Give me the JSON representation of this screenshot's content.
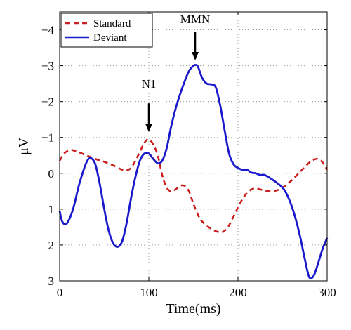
{
  "chart_data": {
    "type": "line",
    "xlabel": "Time(ms)",
    "ylabel": "μV",
    "xlim": [
      0,
      300
    ],
    "ylim": [
      -4.5,
      3
    ],
    "y_inverted": true,
    "x_ticks": [
      0,
      100,
      200,
      300
    ],
    "y_ticks": [
      -4,
      -3,
      -2,
      -1,
      0,
      1,
      2,
      3
    ],
    "y_tick_labels": [
      "−4",
      "−3",
      "−2",
      "−1",
      "0",
      "1",
      "2",
      "3"
    ],
    "grid": "dotted",
    "legend_position": "top-left",
    "series": [
      {
        "name": "Standard",
        "color": "#cc1f1f",
        "style": "dashed",
        "x": [
          0,
          5,
          12,
          20,
          30,
          40,
          50,
          60,
          70,
          75,
          80,
          85,
          90,
          95,
          100,
          105,
          110,
          115,
          120,
          125,
          130,
          135,
          140,
          145,
          150,
          155,
          160,
          170,
          180,
          185,
          190,
          200,
          205,
          210,
          215,
          220,
          225,
          230,
          240,
          250,
          260,
          270,
          280,
          285,
          290,
          295,
          300
        ],
        "y": [
          -0.35,
          -0.55,
          -0.65,
          -0.6,
          -0.5,
          -0.4,
          -0.32,
          -0.22,
          -0.1,
          -0.08,
          -0.15,
          -0.35,
          -0.6,
          -0.85,
          -0.95,
          -0.8,
          -0.5,
          0.05,
          0.4,
          0.5,
          0.45,
          0.35,
          0.35,
          0.5,
          0.85,
          1.15,
          1.35,
          1.55,
          1.65,
          1.6,
          1.45,
          0.95,
          0.72,
          0.55,
          0.45,
          0.42,
          0.45,
          0.48,
          0.5,
          0.4,
          0.2,
          -0.05,
          -0.3,
          -0.38,
          -0.4,
          -0.3,
          -0.1
        ]
      },
      {
        "name": "Deviant",
        "color": "#1a1acc",
        "style": "solid",
        "x": [
          0,
          3,
          8,
          15,
          22,
          30,
          35,
          40,
          45,
          50,
          55,
          60,
          65,
          70,
          75,
          80,
          85,
          90,
          95,
          100,
          105,
          110,
          115,
          120,
          125,
          130,
          135,
          140,
          145,
          150,
          152,
          155,
          160,
          165,
          170,
          175,
          180,
          185,
          190,
          195,
          200,
          205,
          210,
          215,
          220,
          225,
          230,
          240,
          250,
          255,
          260,
          265,
          270,
          275,
          280,
          285,
          290,
          295,
          300
        ],
        "y": [
          1.05,
          1.35,
          1.4,
          1.0,
          0.3,
          -0.3,
          -0.42,
          -0.25,
          0.3,
          1.0,
          1.6,
          1.95,
          2.05,
          1.9,
          1.4,
          0.7,
          0.1,
          -0.35,
          -0.55,
          -0.55,
          -0.4,
          -0.28,
          -0.35,
          -0.7,
          -1.3,
          -1.8,
          -2.2,
          -2.55,
          -2.85,
          -3.0,
          -3.02,
          -2.98,
          -2.65,
          -2.5,
          -2.48,
          -2.4,
          -1.9,
          -1.2,
          -0.55,
          -0.25,
          -0.15,
          -0.1,
          -0.1,
          -0.02,
          0.0,
          0.05,
          0.05,
          0.2,
          0.4,
          0.6,
          0.9,
          1.3,
          1.8,
          2.4,
          2.9,
          2.85,
          2.5,
          2.1,
          1.8
        ]
      }
    ],
    "annotations": [
      {
        "text": "N1",
        "x": 100,
        "label_y": -2.5,
        "arrow_start": -1.95,
        "arrow_end": -1.15
      },
      {
        "text": "MMN",
        "x": 152,
        "label_y": -4.3,
        "arrow_start": -3.95,
        "arrow_end": -3.15
      }
    ]
  }
}
